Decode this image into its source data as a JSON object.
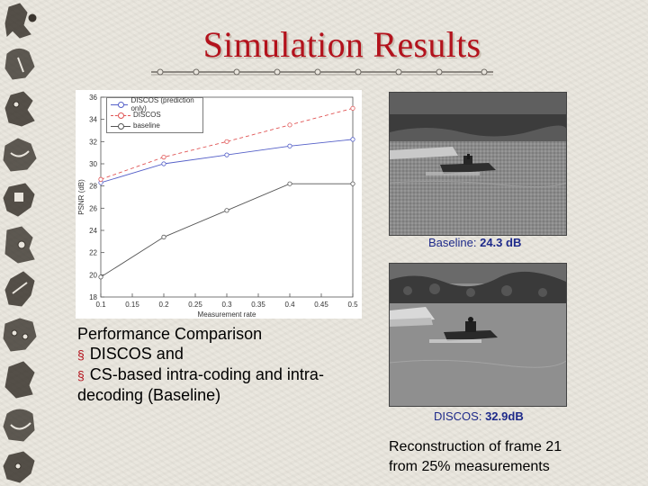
{
  "slide": {
    "title": "Simulation Results"
  },
  "chart_data": {
    "type": "line",
    "xlabel": "Measurement rate",
    "ylabel": "PSNR (dB)",
    "x": [
      0.1,
      0.2,
      0.3,
      0.4,
      0.5
    ],
    "xticks": [
      "0.1",
      "0.15",
      "0.2",
      "0.25",
      "0.3",
      "0.35",
      "0.4",
      "0.45",
      "0.5"
    ],
    "yticks": [
      "18",
      "20",
      "22",
      "24",
      "26",
      "28",
      "30",
      "32",
      "34",
      "36"
    ],
    "xlim": [
      0.1,
      0.5
    ],
    "ylim": [
      18,
      36
    ],
    "grid": false,
    "legend_position": "top-left",
    "series": [
      {
        "name": "DISCOS (prediction only)",
        "values": [
          28.3,
          30.0,
          30.8,
          31.6,
          32.2
        ],
        "color": "#5560c8",
        "style": "solid"
      },
      {
        "name": "DISCOS",
        "values": [
          28.6,
          30.6,
          32.0,
          33.5,
          35.0
        ],
        "color": "#e05555",
        "style": "dashed"
      },
      {
        "name": "baseline",
        "values": [
          19.8,
          23.4,
          25.8,
          28.2,
          28.2
        ],
        "color": "#555555",
        "style": "solid"
      }
    ]
  },
  "captions": {
    "baseline_label": "Baseline: ",
    "baseline_value": "24.3 dB",
    "discos_label": "DISCOS: ",
    "discos_value": "32.9dB"
  },
  "body": {
    "heading": "Performance Comparison",
    "bullets": [
      "DISCOS and",
      "CS-based intra-coding and intra-decoding (Baseline)"
    ]
  },
  "reconstruction_note": {
    "line1": "Reconstruction of frame 21",
    "line2": "from 25% measurements"
  },
  "colors": {
    "title": "#b3121c",
    "caption": "#1e2a8a"
  }
}
